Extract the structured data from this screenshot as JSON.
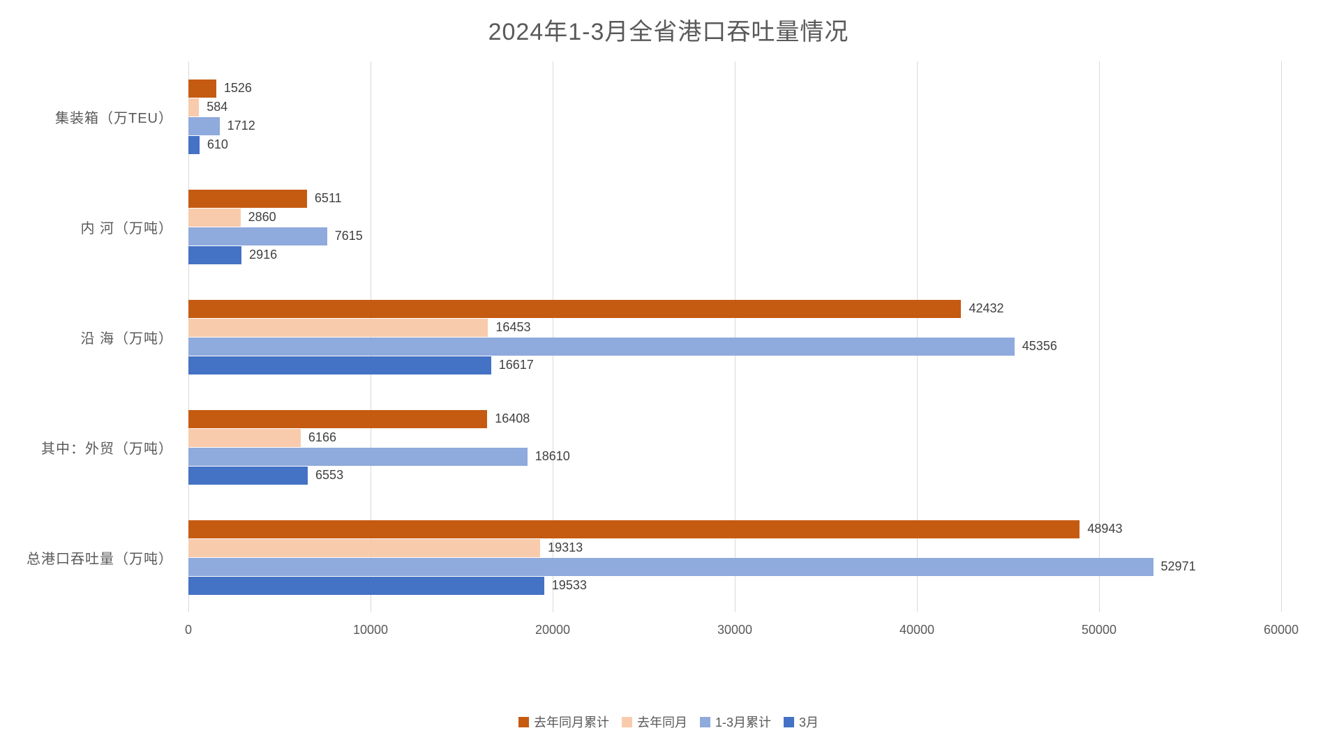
{
  "chart_data": {
    "type": "bar",
    "orientation": "horizontal",
    "title": "2024年1-3月全省港口吞吐量情况",
    "categories": [
      "集装箱（万TEU）",
      "内 河（万吨）",
      "沿 海（万吨）",
      "其中：外贸（万吨）",
      "总港口吞吐量（万吨）"
    ],
    "series": [
      {
        "name": "去年同月累计",
        "color": "#C55A11",
        "values": [
          1526,
          6511,
          42432,
          16408,
          48943
        ]
      },
      {
        "name": "去年同月",
        "color": "#F8CBAD",
        "values": [
          584,
          2860,
          16453,
          6166,
          19313
        ]
      },
      {
        "name": "1-3月累计",
        "color": "#8FAADC",
        "values": [
          1712,
          7615,
          45356,
          18610,
          52971
        ]
      },
      {
        "name": "3月",
        "color": "#4472C4",
        "values": [
          610,
          2916,
          16617,
          6553,
          19533
        ]
      }
    ],
    "x_axis": {
      "ticks": [
        0,
        10000,
        20000,
        30000,
        40000,
        50000,
        60000
      ],
      "max": 60000
    },
    "grid": true,
    "legend_position": "bottom",
    "colors": {
      "title_text": "#595959",
      "axis_text": "#595959",
      "value_text": "#404040",
      "gridline": "#d9d9d9"
    }
  }
}
